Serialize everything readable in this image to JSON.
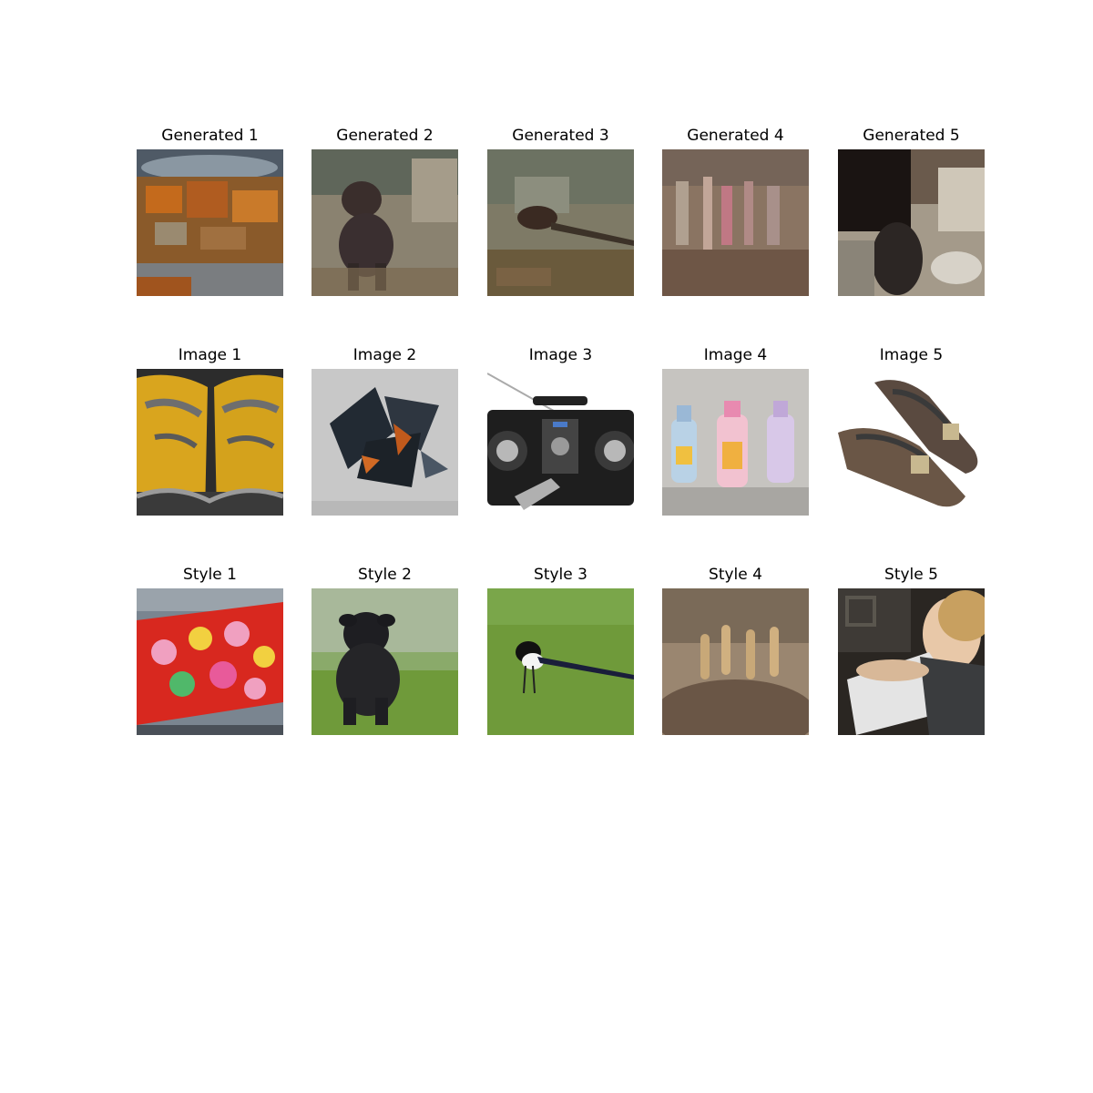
{
  "rows": [
    {
      "row": "generated",
      "items": [
        {
          "title": "Generated 1",
          "subject": "orange-blotch"
        },
        {
          "title": "Generated 2",
          "subject": "dog-ghost"
        },
        {
          "title": "Generated 3",
          "subject": "bird-ghost"
        },
        {
          "title": "Generated 4",
          "subject": "vertical-streaks"
        },
        {
          "title": "Generated 5",
          "subject": "dark-figure"
        }
      ]
    },
    {
      "row": "image",
      "items": [
        {
          "title": "Image 1",
          "subject": "yellow-shoes"
        },
        {
          "title": "Image 2",
          "subject": "abstract-shards"
        },
        {
          "title": "Image 3",
          "subject": "boombox"
        },
        {
          "title": "Image 4",
          "subject": "baby-bottles"
        },
        {
          "title": "Image 5",
          "subject": "sandals"
        }
      ]
    },
    {
      "row": "style",
      "items": [
        {
          "title": "Style 1",
          "subject": "mushroom-fabric"
        },
        {
          "title": "Style 2",
          "subject": "black-puppy"
        },
        {
          "title": "Style 3",
          "subject": "magpie"
        },
        {
          "title": "Style 4",
          "subject": "meerkats"
        },
        {
          "title": "Style 5",
          "subject": "girl-portrait"
        }
      ]
    }
  ],
  "colors": {
    "yellow": "#d9a51e",
    "grass": "#6f9a3a",
    "fabric-red": "#d8281f",
    "sky-gray": "#8e9aa3"
  }
}
